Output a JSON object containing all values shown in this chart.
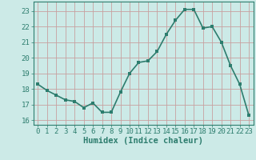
{
  "x": [
    0,
    1,
    2,
    3,
    4,
    5,
    6,
    7,
    8,
    9,
    10,
    11,
    12,
    13,
    14,
    15,
    16,
    17,
    18,
    19,
    20,
    21,
    22,
    23
  ],
  "y": [
    18.3,
    17.9,
    17.6,
    17.3,
    17.2,
    16.8,
    17.1,
    16.5,
    16.5,
    17.8,
    19.0,
    19.7,
    19.8,
    20.4,
    21.5,
    22.4,
    23.1,
    23.1,
    21.9,
    22.0,
    21.0,
    19.5,
    18.3,
    16.3
  ],
  "line_color": "#2d7d6e",
  "marker_color": "#2d7d6e",
  "bg_color": "#cceae7",
  "grid_color_major": "#c8a0a0",
  "grid_color_minor": "#ddc8c8",
  "axis_color": "#2d7d6e",
  "xlabel": "Humidex (Indice chaleur)",
  "xlim": [
    -0.5,
    23.5
  ],
  "ylim": [
    15.7,
    23.6
  ],
  "yticks": [
    16,
    17,
    18,
    19,
    20,
    21,
    22,
    23
  ],
  "xticks": [
    0,
    1,
    2,
    3,
    4,
    5,
    6,
    7,
    8,
    9,
    10,
    11,
    12,
    13,
    14,
    15,
    16,
    17,
    18,
    19,
    20,
    21,
    22,
    23
  ],
  "font_size": 6.5,
  "label_font_size": 7.5,
  "line_width": 1.2,
  "marker_size": 2.5
}
